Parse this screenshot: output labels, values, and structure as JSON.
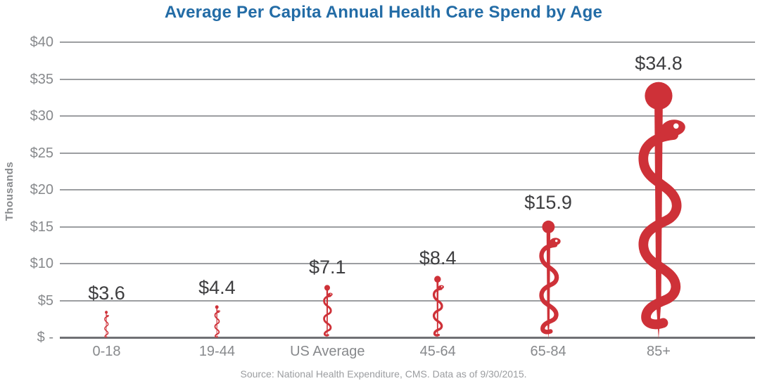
{
  "title": "Average Per Capita Annual Health Care Spend by Age",
  "source_note": "Source: National Health Expenditure, CMS.  Data as of 9/30/2015.",
  "colors": {
    "title_blue": "#236CA6",
    "staff_red": "#CE3138",
    "gridline_gray": "#9C9EA1",
    "axis_line_gray": "#707174",
    "axis_text_gray": "#87898C",
    "data_label_dark": "#3E3E40",
    "source_text_gray": "#9B9DA0"
  },
  "icons": {
    "pictogram": "rod-of-asclepius-icon"
  },
  "chart_data": {
    "type": "bar",
    "pictogram": "rod-of-asclepius",
    "title": "Average Per Capita Annual Health Care Spend by Age",
    "categories": [
      "0-18",
      "19-44",
      "US Average",
      "45-64",
      "65-84",
      "85+"
    ],
    "values": [
      3.6,
      4.4,
      7.1,
      8.4,
      15.9,
      34.8
    ],
    "data_labels": [
      "$3.6",
      "$4.4",
      "$7.1",
      "$8.4",
      "$15.9",
      "$34.8"
    ],
    "xlabel": "",
    "ylabel": "Thousands",
    "units": "thousands of dollars per person per year",
    "ylim": [
      0,
      40
    ],
    "ytick_step": 5,
    "ytick_labels": [
      "$ -",
      "$5",
      "$10",
      "$15",
      "$20",
      "$25",
      "$30",
      "$35",
      "$40"
    ],
    "grid": true,
    "legend": false
  }
}
